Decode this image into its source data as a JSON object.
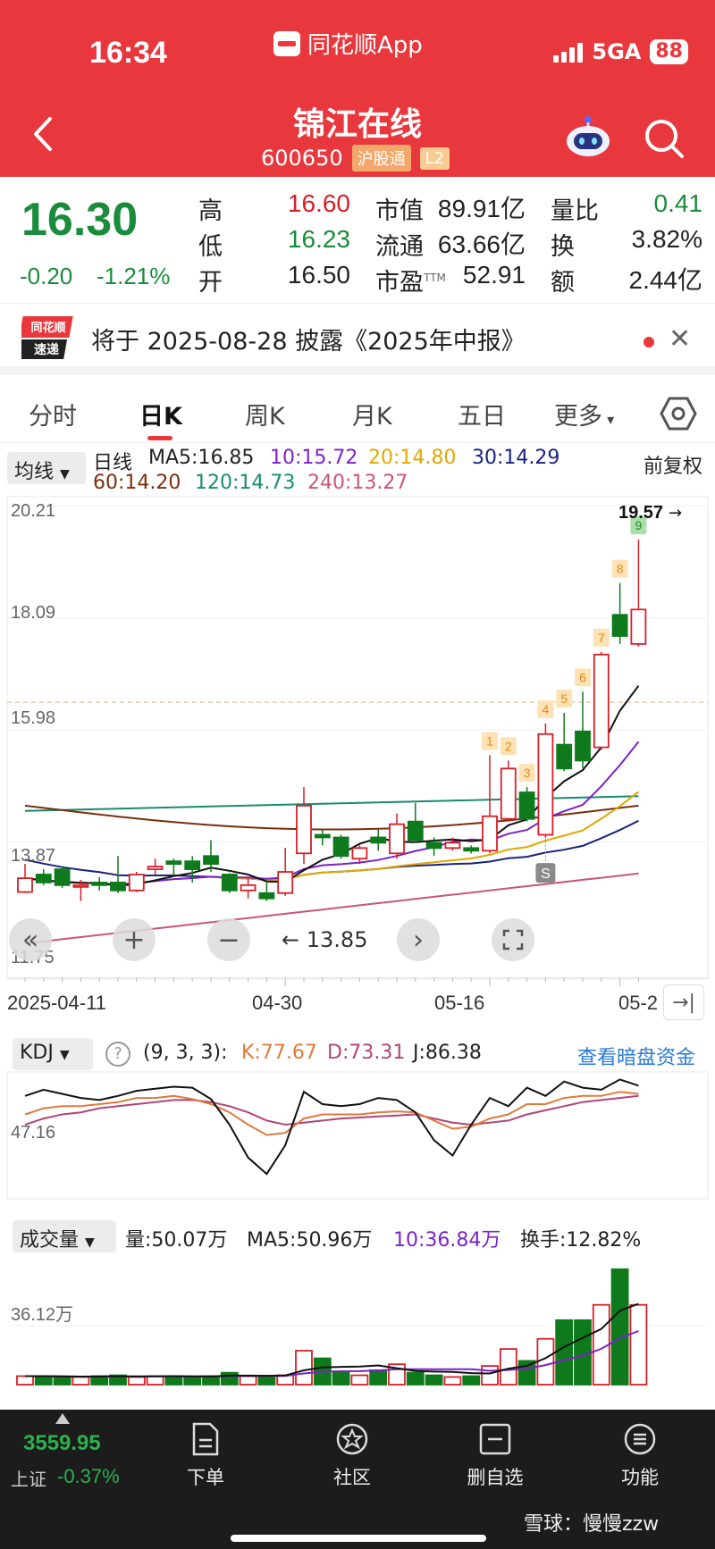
{
  "status_bar": {
    "time": "16:34",
    "app_name": "同花顺App",
    "network": "5GA",
    "battery": "88"
  },
  "header": {
    "title": "锦江在线",
    "code": "600650",
    "tag_market": "沪股通",
    "tag_level": "L2"
  },
  "quote": {
    "price": "16.30",
    "change": "-0.20",
    "change_pct": "-1.21%",
    "fields": [
      {
        "label": "高",
        "value": "16.60"
      },
      {
        "label": "低",
        "value": "16.23"
      },
      {
        "label": "开",
        "value": "16.50"
      },
      {
        "label": "市值",
        "value": "89.91亿"
      },
      {
        "label": "流通",
        "value": "63.66亿"
      },
      {
        "label": "市盈",
        "sup": "TTM",
        "value": "52.91"
      },
      {
        "label": "量比",
        "value": "0.41"
      },
      {
        "label": "换",
        "value": "3.82%"
      },
      {
        "label": "额",
        "value": "2.44亿"
      }
    ]
  },
  "notice": {
    "logo_top": "同花顺",
    "logo_bottom": "速递",
    "text": "将于 2025-08-28 披露《2025年中报》"
  },
  "tabs": [
    "分时",
    "日K",
    "周K",
    "月K",
    "五日",
    "更多"
  ],
  "ma_bar": {
    "select": "均线",
    "type": "日线",
    "ma5": "MA5:16.85",
    "ma10": "10:15.72",
    "ma20": "20:14.80",
    "ma30": "30:14.29",
    "ma60": "60:14.20",
    "ma120": "120:14.73",
    "ma240": "240:13.27",
    "adjust": "前复权"
  },
  "colors": {
    "up": "#d81e26",
    "down": "#0e7a1c",
    "ma5": "#111111",
    "ma10": "#7b22c9",
    "ma20": "#e0a800",
    "ma30": "#1a237e",
    "ma60": "#7a2e0e",
    "ma120": "#178c6e",
    "ma240": "#c9557a"
  },
  "price_axis": {
    "labels": [
      "20.21",
      "18.09",
      "15.98",
      "13.87",
      "11.75"
    ],
    "max_label": "19.57"
  },
  "kline_controls": {
    "pan_label": "13.85"
  },
  "dates": [
    "2025-04-11",
    "04-30",
    "05-16",
    "05-2"
  ],
  "kdj": {
    "select": "KDJ",
    "params": "(9, 3, 3):",
    "k": "K:77.67",
    "d": "D:73.31",
    "j": "J:86.38",
    "axis_label": "47.16",
    "link": "查看暗盘资金"
  },
  "volume": {
    "select": "成交量",
    "vol": "量:50.07万",
    "ma5": "MA5:50.96万",
    "ma10": "10:36.84万",
    "turnover": "换手:12.82%",
    "axis_label": "36.12万"
  },
  "bottom_nav": {
    "index_value": "3559.95",
    "index_name": "上证",
    "index_change": "-0.37%",
    "items": [
      "下单",
      "社区",
      "删自选",
      "功能"
    ],
    "watermark": "雪球：慢慢zzw"
  },
  "chart_data": {
    "type": "candlestick",
    "badges": [
      "1",
      "2",
      "3",
      "4",
      "5",
      "6",
      "7",
      "8",
      "9"
    ],
    "signal": "S",
    "candles": [
      {
        "o": 12.92,
        "c": 13.18,
        "h": 13.45,
        "l": 12.9
      },
      {
        "o": 13.25,
        "c": 13.1,
        "h": 13.35,
        "l": 13.05
      },
      {
        "o": 13.35,
        "c": 13.05,
        "h": 13.4,
        "l": 13.0
      },
      {
        "o": 13.05,
        "c": 13.05,
        "h": 13.15,
        "l": 12.75
      },
      {
        "o": 13.1,
        "c": 13.05,
        "h": 13.2,
        "l": 12.95
      },
      {
        "o": 13.1,
        "c": 12.95,
        "h": 13.6,
        "l": 12.9
      },
      {
        "o": 12.95,
        "c": 13.25,
        "h": 13.3,
        "l": 12.92
      },
      {
        "o": 13.35,
        "c": 13.4,
        "h": 13.55,
        "l": 13.25
      },
      {
        "o": 13.5,
        "c": 13.45,
        "h": 13.55,
        "l": 13.2
      },
      {
        "o": 13.5,
        "c": 13.35,
        "h": 13.6,
        "l": 13.1
      },
      {
        "o": 13.6,
        "c": 13.45,
        "h": 13.9,
        "l": 13.3
      },
      {
        "o": 13.25,
        "c": 12.95,
        "h": 13.28,
        "l": 12.9
      },
      {
        "o": 12.95,
        "c": 13.05,
        "h": 13.2,
        "l": 12.8
      },
      {
        "o": 12.9,
        "c": 12.8,
        "h": 13.1,
        "l": 12.75
      },
      {
        "o": 12.9,
        "c": 13.3,
        "h": 13.75,
        "l": 12.85
      },
      {
        "o": 13.65,
        "c": 14.55,
        "h": 14.9,
        "l": 13.45
      },
      {
        "o": 14.0,
        "c": 13.95,
        "h": 14.1,
        "l": 13.8
      },
      {
        "o": 13.95,
        "c": 13.6,
        "h": 14.0,
        "l": 13.55
      },
      {
        "o": 13.55,
        "c": 13.75,
        "h": 13.8,
        "l": 13.45
      },
      {
        "o": 13.95,
        "c": 13.85,
        "h": 14.1,
        "l": 13.7
      },
      {
        "o": 13.65,
        "c": 14.2,
        "h": 14.4,
        "l": 13.55
      },
      {
        "o": 14.25,
        "c": 13.9,
        "h": 14.6,
        "l": 13.85
      },
      {
        "o": 13.85,
        "c": 13.75,
        "h": 13.95,
        "l": 13.6
      },
      {
        "o": 13.75,
        "c": 13.85,
        "h": 13.95,
        "l": 13.7
      },
      {
        "o": 13.75,
        "c": 13.7,
        "h": 13.8,
        "l": 13.65
      },
      {
        "o": 13.7,
        "c": 14.35,
        "h": 15.5,
        "l": 13.65
      },
      {
        "o": 14.3,
        "c": 15.25,
        "h": 15.4,
        "l": 14.25
      },
      {
        "o": 14.8,
        "c": 14.3,
        "h": 14.9,
        "l": 14.25
      },
      {
        "o": 14.0,
        "c": 15.9,
        "h": 16.1,
        "l": 13.95
      },
      {
        "o": 15.7,
        "c": 15.25,
        "h": 16.3,
        "l": 15.2
      },
      {
        "o": 15.95,
        "c": 15.4,
        "h": 16.7,
        "l": 15.25
      },
      {
        "o": 15.65,
        "c": 17.4,
        "h": 17.45,
        "l": 15.6
      },
      {
        "o": 18.15,
        "c": 17.75,
        "h": 18.75,
        "l": 17.6
      },
      {
        "o": 17.6,
        "c": 18.25,
        "h": 19.57,
        "l": 17.55
      }
    ]
  }
}
